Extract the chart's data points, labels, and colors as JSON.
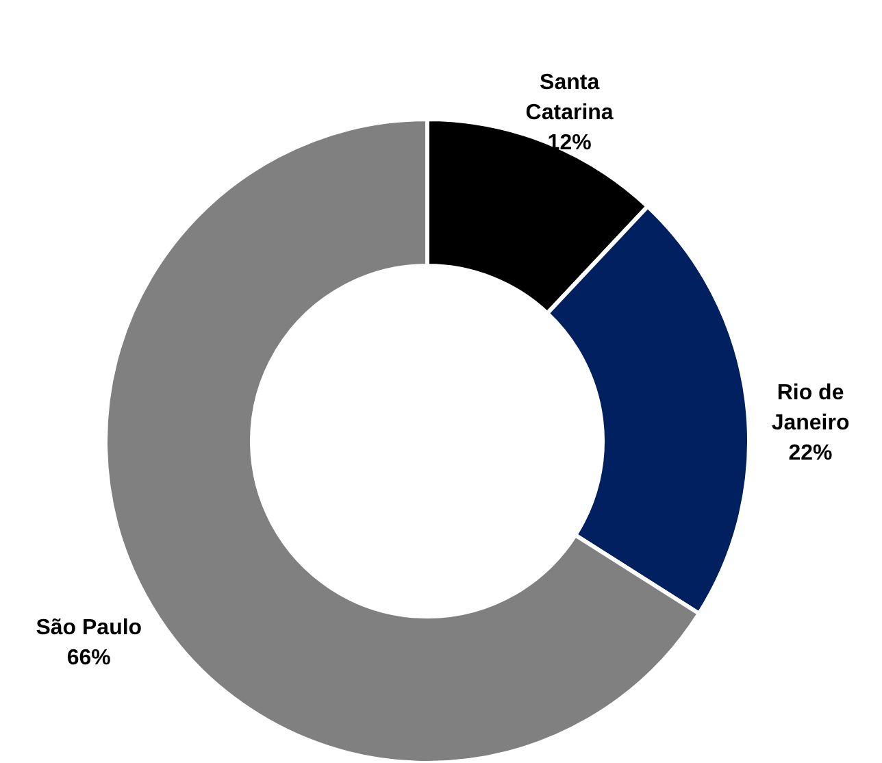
{
  "chart_data": {
    "type": "donut",
    "categories": [
      "Santa Catarina",
      "Rio de Janeiro",
      "São Paulo"
    ],
    "values": [
      12,
      22,
      66
    ],
    "value_labels": [
      "12%",
      "22%",
      "66%"
    ],
    "colors": [
      "#000000",
      "#002060",
      "#808080"
    ]
  }
}
